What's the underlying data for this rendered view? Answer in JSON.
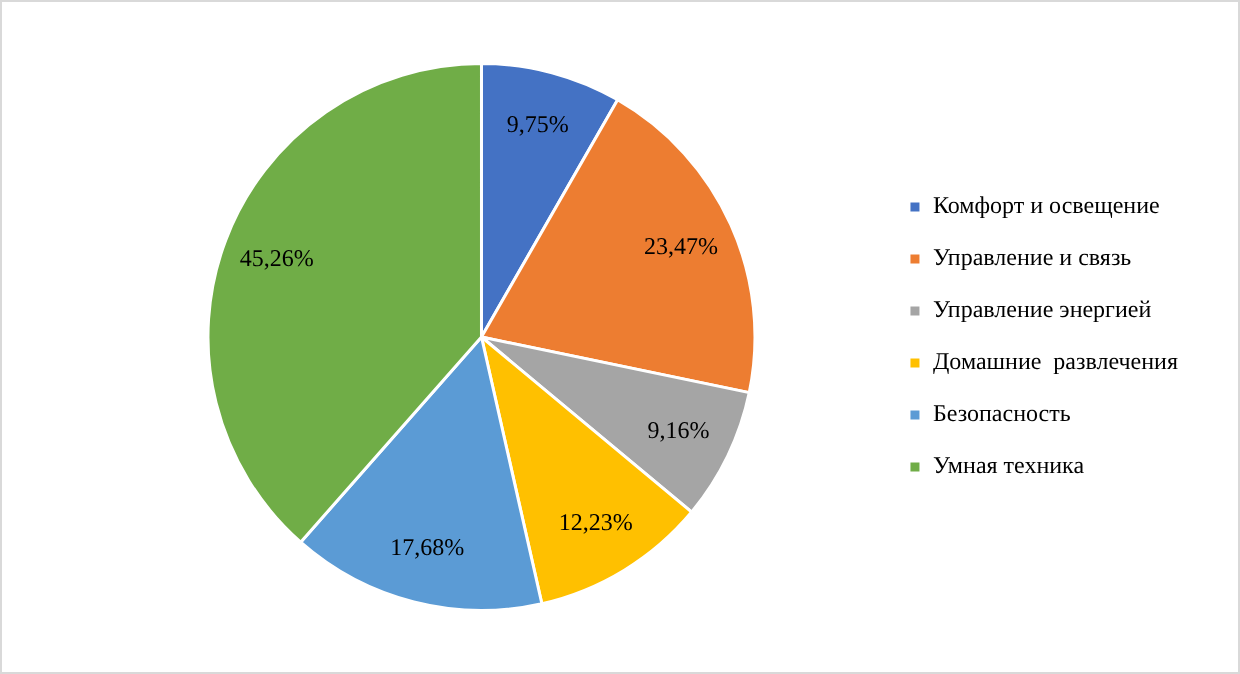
{
  "chart_data": {
    "type": "pie",
    "categories": [
      "Комфорт и освещение",
      "Управление и связь",
      "Управление энергией",
      "Домашние  развлечения",
      "Безопасность",
      "Умная техника"
    ],
    "values": [
      9.75,
      23.47,
      9.16,
      12.23,
      17.68,
      45.26
    ],
    "colors": [
      "#4472c4",
      "#ed7d31",
      "#a5a5a5",
      "#ffc000",
      "#5b9bd5",
      "#70ad47"
    ],
    "value_labels": [
      "9,75%",
      "23,47%",
      "9,16%",
      "12,23%",
      "17,68%",
      "45,26%"
    ],
    "legend": "right"
  }
}
